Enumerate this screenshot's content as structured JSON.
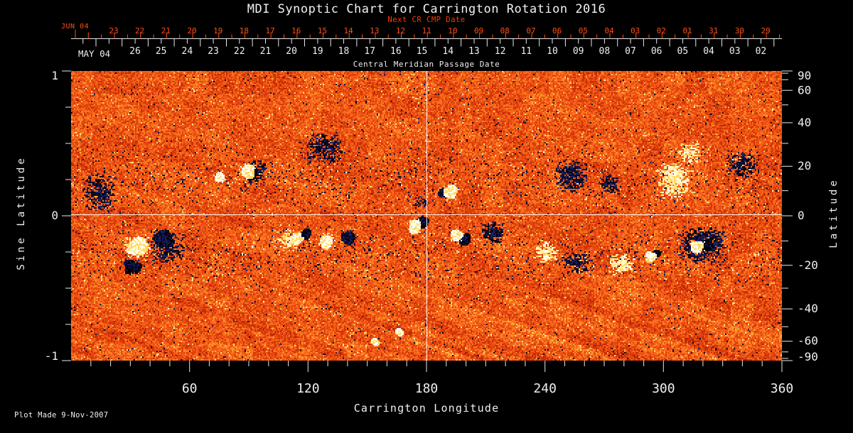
{
  "title": "MDI Synoptic Chart for Carrington Rotation 2016",
  "plot_made": "Plot Made  9-Nov-2007",
  "colors": {
    "background": "#000000",
    "text": "#f0f0f0",
    "next_cr_accent": "#ff3a00",
    "tick_accent": "#ff4f12"
  },
  "top_axis": {
    "next_cr_title": "Next CR CMP Date",
    "next_cr_month": "JUN 04",
    "next_cr_days": [
      "23",
      "22",
      "21",
      "20",
      "19",
      "18",
      "17",
      "16",
      "15",
      "14",
      "13",
      "12",
      "11",
      "10",
      "09",
      "08",
      "07",
      "06",
      "05",
      "04",
      "03",
      "02",
      "01",
      "31",
      "30",
      "29"
    ],
    "cmp_month": "MAY 04",
    "cmp_days": [
      "26",
      "25",
      "24",
      "23",
      "22",
      "21",
      "20",
      "19",
      "18",
      "17",
      "16",
      "15",
      "14",
      "13",
      "12",
      "11",
      "10",
      "09",
      "08",
      "07",
      "06",
      "05",
      "04",
      "03",
      "02"
    ],
    "axis_title": "Central Meridian Passage Date"
  },
  "left_axis": {
    "title": "Sine Latitude",
    "labels": [
      "1",
      "0",
      "-1"
    ],
    "values": [
      1,
      0,
      -1
    ]
  },
  "right_axis": {
    "title": "Latitude",
    "labels": [
      "90",
      "60",
      "40",
      "20",
      "0",
      "-20",
      "-40",
      "-60",
      "-90"
    ],
    "values": [
      90,
      60,
      40,
      20,
      0,
      -20,
      -40,
      -60,
      -90
    ]
  },
  "bottom_axis": {
    "title": "Carrington Longitude",
    "labels": [
      "60",
      "120",
      "180",
      "240",
      "300",
      "360"
    ],
    "values": [
      60,
      120,
      180,
      240,
      300,
      360
    ]
  },
  "chart_data": {
    "type": "heatmap",
    "title": "MDI Synoptic Chart for Carrington Rotation 2016",
    "x_label": "Carrington Longitude",
    "x_range": [
      0,
      360
    ],
    "y_label": "Sine Latitude",
    "y_range": [
      -1,
      1
    ],
    "y2_label": "Latitude",
    "y2_ticks": [
      90,
      60,
      40,
      20,
      0,
      -20,
      -40,
      -60,
      -90
    ],
    "crosshair": {
      "carrington_longitude": 180,
      "sine_latitude": 0
    },
    "background_palette": [
      "#3c0800",
      "#8c1800",
      "#be2804",
      "#e0400c",
      "#f45c18",
      "#fc7820",
      "#fca030",
      "#fcc850",
      "#fff8d0"
    ],
    "negative_polarity_color": "#000010",
    "positive_polarity_color": "#fffaf0",
    "speckle_color": "#182058",
    "active_regions": [
      {
        "lon": 33,
        "sinlat": -0.21,
        "rlon": 7,
        "rsinlat": 0.085,
        "type": "white",
        "strength": 1.0
      },
      {
        "lon": 46,
        "sinlat": -0.15,
        "rlon": 6,
        "rsinlat": 0.075,
        "type": "black",
        "strength": 1.0
      },
      {
        "lon": 31,
        "sinlat": -0.35,
        "rlon": 5.5,
        "rsinlat": 0.055,
        "type": "black",
        "strength": 0.75
      },
      {
        "lon": 48,
        "sinlat": -0.22,
        "rlon": 9,
        "rsinlat": 0.11,
        "type": "dark-scatter",
        "strength": 0.5
      },
      {
        "lon": 14,
        "sinlat": 0.16,
        "rlon": 9,
        "rsinlat": 0.14,
        "type": "dark-scatter",
        "strength": 0.5
      },
      {
        "lon": 75,
        "sinlat": 0.27,
        "rlon": 3.5,
        "rsinlat": 0.045,
        "type": "white",
        "strength": 0.5
      },
      {
        "lon": 89,
        "sinlat": 0.31,
        "rlon": 4.5,
        "rsinlat": 0.06,
        "type": "white",
        "strength": 0.8
      },
      {
        "lon": 91,
        "sinlat": 0.29,
        "rlon": 2.8,
        "rsinlat": 0.04,
        "type": "black",
        "strength": 0.55
      },
      {
        "lon": 93,
        "sinlat": 0.31,
        "rlon": 6,
        "rsinlat": 0.09,
        "type": "dark-scatter",
        "strength": 0.5
      },
      {
        "lon": 128,
        "sinlat": 0.47,
        "rlon": 10,
        "rsinlat": 0.11,
        "type": "dark-scatter",
        "strength": 0.55
      },
      {
        "lon": 110,
        "sinlat": -0.16,
        "rlon": 6,
        "rsinlat": 0.07,
        "type": "bright-scatter",
        "strength": 0.7
      },
      {
        "lon": 114,
        "sinlat": -0.15,
        "rlon": 4,
        "rsinlat": 0.05,
        "type": "white",
        "strength": 0.6
      },
      {
        "lon": 119,
        "sinlat": -0.12,
        "rlon": 2.5,
        "rsinlat": 0.05,
        "type": "black",
        "strength": 0.7
      },
      {
        "lon": 129,
        "sinlat": -0.17,
        "rlon": 4.5,
        "rsinlat": 0.06,
        "type": "white",
        "strength": 0.6
      },
      {
        "lon": 140,
        "sinlat": -0.15,
        "rlon": 4,
        "rsinlat": 0.06,
        "type": "black",
        "strength": 0.85
      },
      {
        "lon": 154,
        "sinlat": -0.87,
        "rlon": 1.6,
        "rsinlat": 0.025,
        "type": "white",
        "strength": 0.4
      },
      {
        "lon": 166,
        "sinlat": -0.8,
        "rlon": 1.3,
        "rsinlat": 0.02,
        "type": "white",
        "strength": 0.3
      },
      {
        "lon": 174,
        "sinlat": -0.07,
        "rlon": 3.5,
        "rsinlat": 0.06,
        "type": "white",
        "strength": 0.9
      },
      {
        "lon": 178,
        "sinlat": -0.04,
        "rlon": 3,
        "rsinlat": 0.05,
        "type": "black",
        "strength": 0.8
      },
      {
        "lon": 176,
        "sinlat": 0.1,
        "rlon": 4,
        "rsinlat": 0.05,
        "type": "dark-scatter",
        "strength": 0.35
      },
      {
        "lon": 188,
        "sinlat": 0.16,
        "rlon": 2.5,
        "rsinlat": 0.035,
        "type": "black",
        "strength": 0.7
      },
      {
        "lon": 192,
        "sinlat": 0.17,
        "rlon": 4,
        "rsinlat": 0.055,
        "type": "white",
        "strength": 0.9
      },
      {
        "lon": 195,
        "sinlat": -0.13,
        "rlon": 3.5,
        "rsinlat": 0.045,
        "type": "white",
        "strength": 0.8
      },
      {
        "lon": 199,
        "sinlat": -0.16,
        "rlon": 3.5,
        "rsinlat": 0.045,
        "type": "black",
        "strength": 0.8
      },
      {
        "lon": 213,
        "sinlat": -0.11,
        "rlon": 6,
        "rsinlat": 0.08,
        "type": "dark-scatter",
        "strength": 0.8
      },
      {
        "lon": 240,
        "sinlat": -0.25,
        "rlon": 6,
        "rsinlat": 0.09,
        "type": "bright-scatter",
        "strength": 0.65
      },
      {
        "lon": 253,
        "sinlat": 0.28,
        "rlon": 9,
        "rsinlat": 0.12,
        "type": "dark-scatter",
        "strength": 0.6
      },
      {
        "lon": 272,
        "sinlat": 0.22,
        "rlon": 6,
        "rsinlat": 0.07,
        "type": "dark-scatter",
        "strength": 0.5
      },
      {
        "lon": 256,
        "sinlat": -0.32,
        "rlon": 8,
        "rsinlat": 0.08,
        "type": "dark-scatter",
        "strength": 0.5
      },
      {
        "lon": 278,
        "sinlat": -0.33,
        "rlon": 7,
        "rsinlat": 0.08,
        "type": "bright-scatter",
        "strength": 0.65
      },
      {
        "lon": 293,
        "sinlat": -0.28,
        "rlon": 3,
        "rsinlat": 0.04,
        "type": "white",
        "strength": 0.5
      },
      {
        "lon": 296,
        "sinlat": -0.26,
        "rlon": 2.2,
        "rsinlat": 0.03,
        "type": "black",
        "strength": 0.45
      },
      {
        "lon": 305,
        "sinlat": 0.25,
        "rlon": 9,
        "rsinlat": 0.13,
        "type": "bright-scatter",
        "strength": 0.7
      },
      {
        "lon": 313,
        "sinlat": 0.44,
        "rlon": 6,
        "rsinlat": 0.08,
        "type": "bright-scatter",
        "strength": 0.5
      },
      {
        "lon": 319,
        "sinlat": -0.19,
        "rlon": 12,
        "rsinlat": 0.13,
        "type": "dark-scatter",
        "strength": 0.85
      },
      {
        "lon": 317,
        "sinlat": -0.21,
        "rlon": 3.5,
        "rsinlat": 0.045,
        "type": "white",
        "strength": 0.8
      },
      {
        "lon": 323,
        "sinlat": -0.2,
        "rlon": 3,
        "rsinlat": 0.035,
        "type": "black",
        "strength": 0.7
      },
      {
        "lon": 340,
        "sinlat": 0.36,
        "rlon": 9,
        "rsinlat": 0.11,
        "type": "dark-scatter",
        "strength": 0.45
      }
    ]
  }
}
